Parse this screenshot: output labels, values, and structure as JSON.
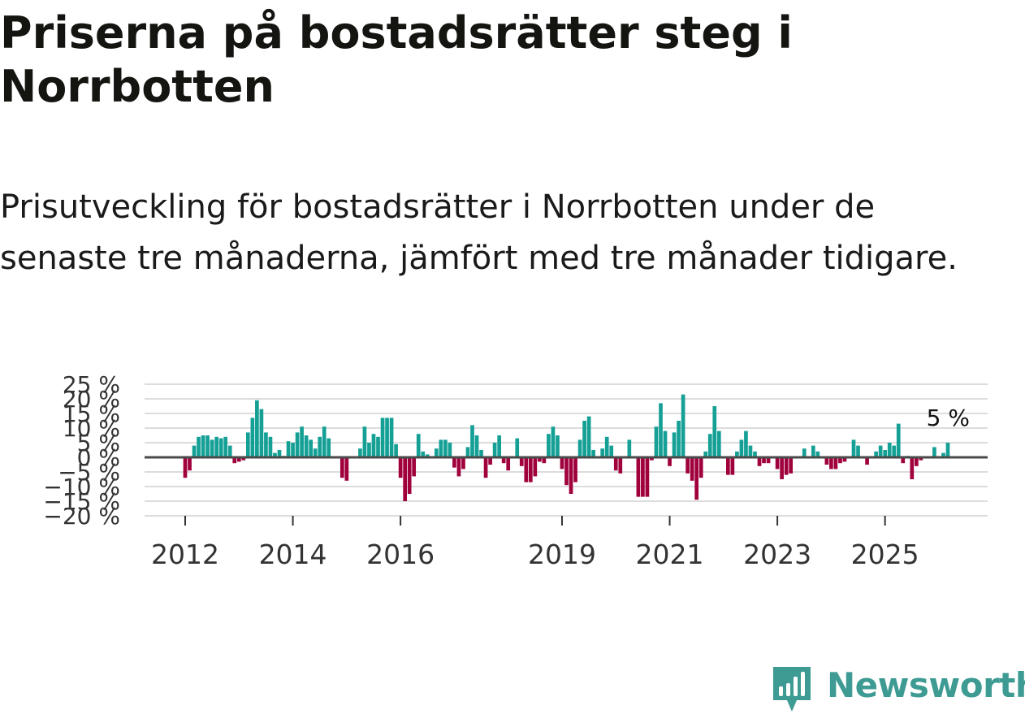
{
  "title": "Priserna på bostadsrätter steg i Norrbotten",
  "subtitle": "Prisutveckling för bostadsrätter i Norrbotten under de senaste tre månaderna, jämfört med tre månader tidigare.",
  "brand": {
    "name": "Newsworthy",
    "color": "#3d9b93"
  },
  "colors": {
    "positive": "#15a096",
    "negative": "#a0003c",
    "zero_line": "#4a4a4a",
    "grid": "#dcdcdc"
  },
  "chart_data": {
    "type": "bar",
    "title": "",
    "xlabel": "",
    "ylabel": "",
    "ylim": [
      -20,
      25
    ],
    "y_ticks": [
      25,
      20,
      15,
      10,
      5,
      0,
      -5,
      -10,
      -15,
      -20
    ],
    "y_tick_labels": [
      "25 %",
      "20 %",
      "15 %",
      "10 %",
      "5 %",
      "0 %",
      "−5 %",
      "−10 %",
      "−15 %",
      "−20 %"
    ],
    "x_ticks": [
      {
        "index": 0,
        "label": "2012"
      },
      {
        "index": 24,
        "label": "2014"
      },
      {
        "index": 48,
        "label": "2016"
      },
      {
        "index": 84,
        "label": "2019"
      },
      {
        "index": 108,
        "label": "2021"
      },
      {
        "index": 132,
        "label": "2023"
      },
      {
        "index": 156,
        "label": "2025"
      }
    ],
    "last_label": "5 %",
    "values": [
      -7,
      -4.5,
      4,
      7,
      7.5,
      7.5,
      6,
      7,
      6.5,
      7,
      4,
      -2,
      -1.5,
      -1,
      8.5,
      13.5,
      19.5,
      16.5,
      8.5,
      7,
      1.5,
      2.5,
      0.5,
      5.5,
      5,
      8.5,
      10.5,
      7.5,
      6,
      3,
      7,
      10.5,
      6.5,
      0,
      0,
      -7,
      -8,
      0,
      0,
      3,
      10.5,
      5,
      8,
      7,
      13.5,
      13.5,
      13.5,
      4.5,
      -7,
      -15,
      -12.5,
      -6.5,
      8,
      2,
      1,
      0,
      3,
      6,
      6,
      5,
      -3.5,
      -6.5,
      -4,
      3.5,
      11,
      7.5,
      2.5,
      -7,
      -2.5,
      5,
      7.5,
      -2,
      -4.5,
      0,
      6.5,
      -3,
      -8.5,
      -8.5,
      -6.5,
      -1.5,
      -2,
      8,
      10.5,
      7.5,
      -4,
      -9.5,
      -12.5,
      -8.5,
      6,
      12.5,
      14,
      2.5,
      0,
      3,
      7,
      4,
      -4.5,
      -5.5,
      0,
      6,
      0,
      -13.5,
      -13.5,
      -13.5,
      -1,
      10.5,
      18.5,
      9,
      -3,
      8.5,
      12.5,
      21.5,
      -5.5,
      -8,
      -14.5,
      -7,
      2,
      8,
      17.5,
      9,
      0,
      -6,
      -6,
      2,
      6,
      9,
      4,
      2,
      -3,
      -2,
      -2,
      0,
      -4,
      -7.5,
      -6,
      -5.5,
      0,
      0,
      3,
      0,
      4,
      2,
      0,
      -2.5,
      -4,
      -4,
      -2,
      -1.5,
      0,
      6,
      4,
      0,
      -2.5,
      0,
      2,
      4,
      2.5,
      5,
      4,
      11.5,
      -2,
      0.5,
      -7.5,
      -3,
      -1,
      0,
      0,
      3.5,
      0,
      1.5,
      5
    ]
  }
}
